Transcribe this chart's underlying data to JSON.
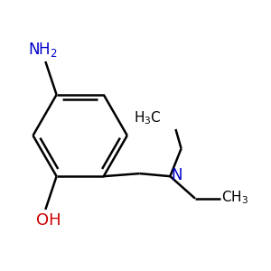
{
  "bg_color": "#ffffff",
  "bond_color": "#000000",
  "n_color": "#0000cc",
  "o_color": "#cc0000",
  "line_width": 1.8,
  "font_size": 12
}
